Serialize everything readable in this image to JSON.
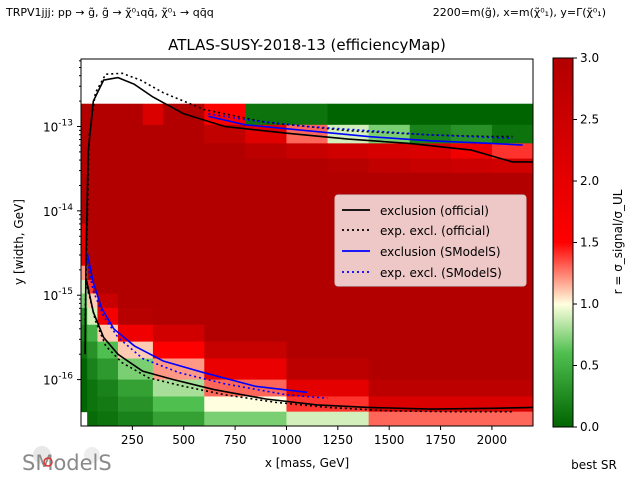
{
  "header": {
    "left": "TRPV1jjj: pp → g̃, g̃ → χ̃⁰₁qq̄, χ̃⁰₁ → qq̄q",
    "right": "2200=m(g̃), x=m(χ̃⁰₁), y=Γ(χ̃⁰₁)"
  },
  "logo": {
    "text": "SModelS"
  },
  "footer": {
    "best_sr": "best SR"
  },
  "chart_data": {
    "type": "heatmap",
    "title": "ATLAS-SUSY-2018-13 (efficiencyMap)",
    "xlabel": "x [mass, GeV]",
    "ylabel": "y [width, GeV]",
    "xlim": [
      0,
      2200
    ],
    "ylim_log10": [
      -16.55,
      -12.2
    ],
    "y_scale": "log",
    "xticks": [
      250,
      500,
      750,
      1000,
      1250,
      1500,
      1750,
      2000
    ],
    "ytick_labels": [
      {
        "exp": -13,
        "label": "10^-13"
      },
      {
        "exp": -14,
        "label": "10^-14"
      },
      {
        "exp": -15,
        "label": "10^-15"
      },
      {
        "exp": -16,
        "label": "10^-16"
      }
    ],
    "colorbar": {
      "label": "r = σ_signal/σ_UL",
      "min": 0.0,
      "max": 3.0,
      "ticks": [
        "0.0",
        "0.5",
        "1.0",
        "1.5",
        "2.0",
        "2.5",
        "3.0"
      ],
      "colors": [
        "#006400",
        "#90ee90",
        "#ffffe0",
        "#ff0000",
        "#b20000"
      ]
    },
    "heatmap_rows": [
      {
        "y0": -12.98,
        "y1": -12.73,
        "cells": [
          [
            0,
            150,
            3.0
          ],
          [
            150,
            300,
            3.0
          ],
          [
            300,
            400,
            2.2
          ],
          [
            400,
            500,
            3.0
          ],
          [
            500,
            600,
            3.0
          ],
          [
            600,
            800,
            1.5
          ],
          [
            800,
            1000,
            0.1
          ],
          [
            1000,
            1200,
            0.1
          ],
          [
            1200,
            1400,
            0.0
          ],
          [
            1400,
            2200,
            0.0
          ]
        ]
      },
      {
        "y0": -13.2,
        "y1": -12.98,
        "cells": [
          [
            0,
            600,
            3.0
          ],
          [
            600,
            800,
            2.7
          ],
          [
            800,
            1000,
            2.1
          ],
          [
            1000,
            1200,
            1.3
          ],
          [
            1200,
            1400,
            0.9
          ],
          [
            1400,
            1600,
            0.7
          ],
          [
            1600,
            1800,
            0.2
          ],
          [
            1800,
            2000,
            0.3
          ],
          [
            2000,
            2200,
            0.1
          ]
        ]
      },
      {
        "y0": -13.38,
        "y1": -13.2,
        "cells": [
          [
            0,
            600,
            3.0
          ],
          [
            600,
            800,
            3.0
          ],
          [
            800,
            1000,
            2.8
          ],
          [
            1000,
            1200,
            2.6
          ],
          [
            1200,
            1400,
            2.4
          ],
          [
            1400,
            1600,
            2.3
          ],
          [
            1600,
            1800,
            2.2
          ],
          [
            1800,
            2000,
            1.8
          ],
          [
            2000,
            2200,
            1.4
          ]
        ]
      },
      {
        "y0": -13.55,
        "y1": -13.38,
        "cells": [
          [
            0,
            1200,
            3.0
          ],
          [
            1200,
            1400,
            2.9
          ],
          [
            1400,
            1600,
            2.7
          ],
          [
            1600,
            1800,
            2.6
          ],
          [
            1800,
            2000,
            2.5
          ],
          [
            2000,
            2200,
            2.4
          ]
        ]
      },
      {
        "y0": -14.15,
        "y1": -13.55,
        "cells": [
          [
            0,
            2200,
            3.0
          ]
        ]
      },
      {
        "y0": -14.65,
        "y1": -14.15,
        "cells": [
          [
            0,
            30,
            2.0
          ],
          [
            30,
            2200,
            3.0
          ]
        ]
      },
      {
        "y0": -14.82,
        "y1": -14.65,
        "cells": [
          [
            0,
            30,
            1.2
          ],
          [
            30,
            2200,
            3.0
          ]
        ]
      },
      {
        "y0": -14.98,
        "y1": -14.82,
        "cells": [
          [
            0,
            30,
            0.9
          ],
          [
            30,
            60,
            1.4
          ],
          [
            60,
            2200,
            3.0
          ]
        ]
      },
      {
        "y0": -15.15,
        "y1": -14.98,
        "cells": [
          [
            0,
            30,
            0.7
          ],
          [
            30,
            80,
            1.1
          ],
          [
            80,
            180,
            2.6
          ],
          [
            180,
            2200,
            3.0
          ]
        ]
      },
      {
        "y0": -15.35,
        "y1": -15.15,
        "cells": [
          [
            0,
            30,
            0.3
          ],
          [
            30,
            80,
            0.9
          ],
          [
            80,
            180,
            1.7
          ],
          [
            180,
            350,
            2.9
          ],
          [
            350,
            2200,
            3.0
          ]
        ]
      },
      {
        "y0": -15.55,
        "y1": -15.35,
        "cells": [
          [
            0,
            30,
            0.2
          ],
          [
            30,
            80,
            0.5
          ],
          [
            80,
            180,
            1.1
          ],
          [
            180,
            350,
            1.8
          ],
          [
            350,
            600,
            2.4
          ],
          [
            600,
            2200,
            3.0
          ]
        ]
      },
      {
        "y0": -15.75,
        "y1": -15.55,
        "cells": [
          [
            0,
            30,
            0.1
          ],
          [
            30,
            80,
            0.3
          ],
          [
            80,
            180,
            0.6
          ],
          [
            180,
            350,
            1.1
          ],
          [
            350,
            600,
            1.5
          ],
          [
            600,
            1000,
            2.6
          ],
          [
            1000,
            2200,
            3.0
          ]
        ]
      },
      {
        "y0": -16.0,
        "y1": -15.75,
        "cells": [
          [
            0,
            30,
            0.0
          ],
          [
            30,
            80,
            0.2
          ],
          [
            80,
            180,
            0.35
          ],
          [
            180,
            350,
            0.7
          ],
          [
            350,
            600,
            1.2
          ],
          [
            600,
            1000,
            1.9
          ],
          [
            1000,
            1400,
            2.8
          ],
          [
            1400,
            2200,
            3.0
          ]
        ]
      },
      {
        "y0": -16.2,
        "y1": -16.0,
        "cells": [
          [
            0,
            30,
            0.0
          ],
          [
            30,
            80,
            0.1
          ],
          [
            80,
            180,
            0.2
          ],
          [
            180,
            350,
            0.4
          ],
          [
            350,
            600,
            0.8
          ],
          [
            600,
            1000,
            1.3
          ],
          [
            1000,
            1400,
            2.0
          ],
          [
            1400,
            2200,
            2.8
          ]
        ]
      },
      {
        "y0": -16.38,
        "y1": -16.2,
        "cells": [
          [
            0,
            30,
            0.0
          ],
          [
            30,
            80,
            0.1
          ],
          [
            80,
            180,
            0.15
          ],
          [
            180,
            350,
            0.3
          ],
          [
            350,
            600,
            0.6
          ],
          [
            600,
            1000,
            1.0
          ],
          [
            1000,
            1400,
            1.4
          ],
          [
            1400,
            2200,
            2.2
          ]
        ]
      },
      {
        "y0": -16.55,
        "y1": -16.38,
        "cells": [
          [
            30,
            80,
            0.05
          ],
          [
            80,
            180,
            0.1
          ],
          [
            180,
            350,
            0.2
          ],
          [
            350,
            600,
            0.4
          ],
          [
            600,
            1000,
            0.7
          ],
          [
            1000,
            1400,
            0.9
          ],
          [
            1400,
            2200,
            1.3
          ]
        ]
      }
    ],
    "series": [
      {
        "name": "exclusion (official)",
        "color": "#000000",
        "style": "solid",
        "points": [
          [
            20,
            -15.7
          ],
          [
            25,
            -14.5
          ],
          [
            35,
            -13.3
          ],
          [
            60,
            -12.7
          ],
          [
            110,
            -12.45
          ],
          [
            180,
            -12.42
          ],
          [
            260,
            -12.5
          ],
          [
            350,
            -12.65
          ],
          [
            500,
            -12.85
          ],
          [
            700,
            -13.0
          ],
          [
            1000,
            -13.08
          ],
          [
            1300,
            -13.15
          ],
          [
            1600,
            -13.2
          ],
          [
            1900,
            -13.28
          ],
          [
            2000,
            -13.35
          ],
          [
            2100,
            -13.42
          ],
          [
            2200,
            -13.42
          ]
        ]
      },
      {
        "name": "exp. excl. (official)",
        "color": "#000000",
        "style": "dotted",
        "points": [
          [
            20,
            -15.3
          ],
          [
            30,
            -14.2
          ],
          [
            40,
            -13.1
          ],
          [
            70,
            -12.6
          ],
          [
            120,
            -12.38
          ],
          [
            200,
            -12.37
          ],
          [
            290,
            -12.45
          ],
          [
            400,
            -12.6
          ],
          [
            600,
            -12.8
          ],
          [
            900,
            -12.95
          ],
          [
            1300,
            -13.05
          ],
          [
            1700,
            -13.1
          ],
          [
            2000,
            -13.12
          ],
          [
            2100,
            -13.12
          ]
        ]
      },
      {
        "name": "exclusion (SModelS)",
        "color": "#0000ff",
        "style": "solid",
        "points": [
          [
            620,
            -12.88
          ],
          [
            800,
            -12.98
          ],
          [
            1100,
            -13.05
          ],
          [
            1400,
            -13.12
          ],
          [
            1700,
            -13.17
          ],
          [
            2000,
            -13.2
          ],
          [
            2150,
            -13.22
          ]
        ]
      },
      {
        "name": "exp. excl. (SModelS)",
        "color": "#0000ff",
        "style": "dotted",
        "points": [
          [
            620,
            -12.85
          ],
          [
            800,
            -12.92
          ],
          [
            1100,
            -13.0
          ],
          [
            1400,
            -13.05
          ],
          [
            1700,
            -13.1
          ],
          [
            2000,
            -13.13
          ],
          [
            2100,
            -13.14
          ]
        ]
      },
      {
        "name": "exclusion (official) lower",
        "color": "#000000",
        "style": "solid",
        "points": [
          [
            25,
            -14.8
          ],
          [
            60,
            -15.2
          ],
          [
            110,
            -15.5
          ],
          [
            180,
            -15.7
          ],
          [
            300,
            -15.9
          ],
          [
            450,
            -16.0
          ],
          [
            650,
            -16.12
          ],
          [
            900,
            -16.23
          ],
          [
            1150,
            -16.3
          ],
          [
            1400,
            -16.33
          ],
          [
            1700,
            -16.35
          ],
          [
            2000,
            -16.34
          ],
          [
            2200,
            -16.33
          ]
        ]
      },
      {
        "name": "exp. excl. (official) lower",
        "color": "#000000",
        "style": "dotted",
        "points": [
          [
            30,
            -14.9
          ],
          [
            70,
            -15.3
          ],
          [
            120,
            -15.6
          ],
          [
            200,
            -15.8
          ],
          [
            330,
            -15.98
          ],
          [
            500,
            -16.08
          ],
          [
            700,
            -16.18
          ],
          [
            950,
            -16.27
          ],
          [
            1200,
            -16.33
          ],
          [
            1500,
            -16.37
          ],
          [
            1800,
            -16.38
          ],
          [
            2100,
            -16.38
          ]
        ]
      },
      {
        "name": "exclusion (SModelS) lower",
        "color": "#0000ff",
        "style": "solid",
        "points": [
          [
            30,
            -14.5
          ],
          [
            60,
            -14.85
          ],
          [
            100,
            -15.15
          ],
          [
            160,
            -15.4
          ],
          [
            260,
            -15.6
          ],
          [
            400,
            -15.78
          ],
          [
            600,
            -15.92
          ],
          [
            850,
            -16.08
          ],
          [
            1100,
            -16.15
          ]
        ]
      },
      {
        "name": "exp. excl. (SModelS) lower",
        "color": "#0000ff",
        "style": "dotted",
        "points": [
          [
            30,
            -14.6
          ],
          [
            60,
            -14.95
          ],
          [
            110,
            -15.25
          ],
          [
            180,
            -15.5
          ],
          [
            300,
            -15.75
          ],
          [
            480,
            -15.92
          ],
          [
            700,
            -16.05
          ],
          [
            1000,
            -16.18
          ],
          [
            1200,
            -16.22
          ]
        ]
      }
    ],
    "legend": {
      "placement": "center-right",
      "entries": [
        {
          "label": "exclusion (official)",
          "color": "#000000",
          "style": "solid"
        },
        {
          "label": "exp. excl. (official)",
          "color": "#000000",
          "style": "dotted"
        },
        {
          "label": "exclusion (SModelS)",
          "color": "#0000ff",
          "style": "solid"
        },
        {
          "label": "exp. excl. (SModelS)",
          "color": "#0000ff",
          "style": "dotted"
        }
      ]
    }
  }
}
